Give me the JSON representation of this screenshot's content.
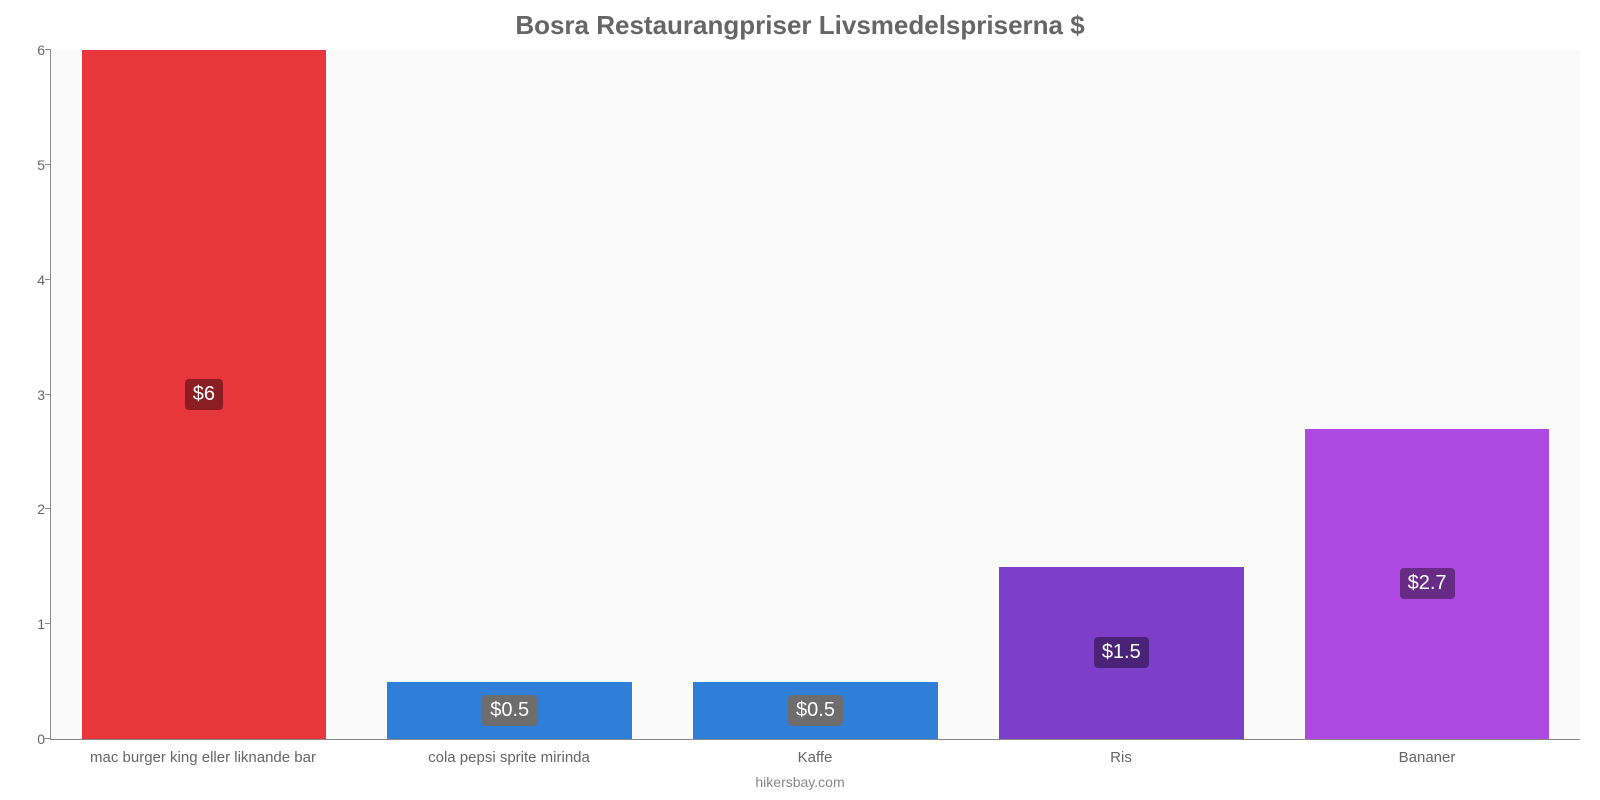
{
  "chart": {
    "type": "bar",
    "title": "Bosra Restaurangpriser Livsmedelspriserna $",
    "title_color": "#666666",
    "title_fontsize": 26,
    "background_color": "#ffffff",
    "plot_background": "#fafafa",
    "axis_color": "#888888",
    "ylim": [
      0,
      6
    ],
    "ytick_step": 1,
    "yticks": [
      0,
      1,
      2,
      3,
      4,
      5,
      6
    ],
    "label_fontsize": 15,
    "label_color": "#666666",
    "source": "hikersbay.com",
    "bar_width_pct": 80,
    "data_label_fontsize": 20,
    "categories": [
      "mac burger king eller liknande bar",
      "cola pepsi sprite mirinda",
      "Kaffe",
      "Ris",
      "Bananer"
    ],
    "values": [
      6,
      0.5,
      0.5,
      1.5,
      2.7
    ],
    "value_labels": [
      "$6",
      "$0.5",
      "$0.5",
      "$1.5",
      "$2.7"
    ],
    "bar_colors": [
      "#e7363c",
      "#2f7ed8",
      "#2f7ed8",
      "#7d3fc9",
      "#ad48e0"
    ],
    "label_bg_colors": [
      "#8a1e22",
      "#6d6d6d",
      "#6d6d6d",
      "#4a2378",
      "#672b86"
    ]
  }
}
